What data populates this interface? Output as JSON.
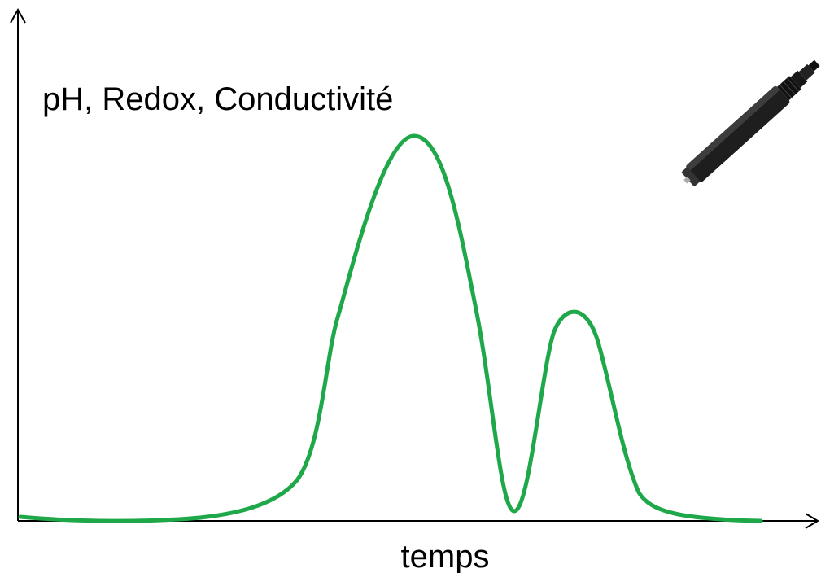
{
  "title": "pH, Redox, Conductivité",
  "x_axis_label": "temps"
}
